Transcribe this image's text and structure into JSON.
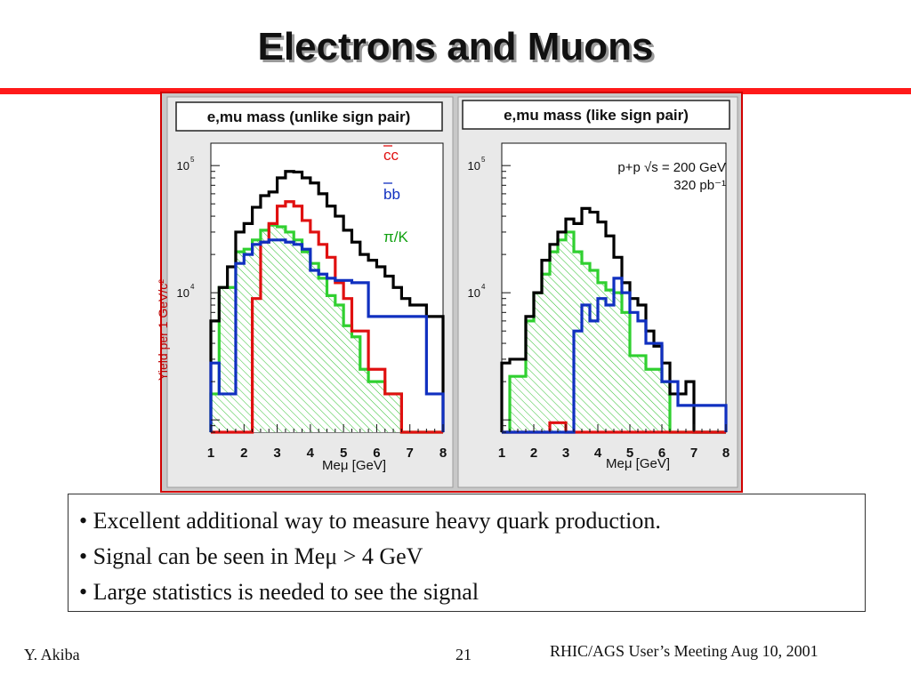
{
  "slide": {
    "title": "Electrons and Muons",
    "bullets": [
      "• Excellent additional way to measure heavy quark production.",
      "• Signal can be seen in Meμ > 4 GeV",
      "• Large statistics is needed to see the signal"
    ],
    "footer": {
      "author": "Y. Akiba",
      "page": "21",
      "meeting": "RHIC/AGS User’s Meeting  Aug 10, 2001"
    }
  },
  "colors": {
    "accent_bar": "#ff1a1a",
    "frame": "#d00000",
    "total": "#000000",
    "cc": "#e01010",
    "bb": "#1030c0",
    "piK": "#30d030"
  },
  "chart_data": [
    {
      "type": "histogram",
      "title": "e,mu mass (unlike sign pair)",
      "xlabel": "Meμ [GeV]",
      "ylabel": "Yield per 1 GeV/c²",
      "xlim": [
        1,
        8
      ],
      "ylim": [
        800,
        150000
      ],
      "yscale": "log",
      "x_ticks": [
        "1",
        "2",
        "3",
        "4",
        "5",
        "6",
        "7",
        "8"
      ],
      "y_ticks": [
        {
          "base": "10",
          "exp": "4",
          "value": 10000
        },
        {
          "base": "10",
          "exp": "5",
          "value": 100000
        }
      ],
      "legend": [
        {
          "label": "cc",
          "overline": true,
          "color": "#e01010"
        },
        {
          "label": "bb",
          "overline": true,
          "color": "#1030c0"
        },
        {
          "label": "π/K",
          "overline": false,
          "color": "#30d030"
        }
      ],
      "bin_edges": [
        1.0,
        1.25,
        1.5,
        1.75,
        2.0,
        2.25,
        2.5,
        2.75,
        3.0,
        3.25,
        3.5,
        3.75,
        4.0,
        4.25,
        4.5,
        4.75,
        5.0,
        5.25,
        5.5,
        5.75,
        6.0,
        6.25,
        6.5,
        6.75,
        7.0,
        7.25,
        7.5,
        7.75,
        8.0
      ],
      "series": [
        {
          "name": "total",
          "color": "#000000",
          "hatched": false,
          "values": [
            6000,
            11000,
            16000,
            30000,
            35000,
            47000,
            58000,
            62000,
            80000,
            90000,
            89000,
            80000,
            73000,
            60000,
            48000,
            40000,
            31000,
            25000,
            20000,
            18000,
            16000,
            13500,
            11000,
            9000,
            8000,
            8000,
            6500,
            6500
          ]
        },
        {
          "name": "cc",
          "color": "#e01010",
          "hatched": false,
          "values": [
            800,
            800,
            800,
            800,
            800,
            9000,
            25000,
            35000,
            48000,
            52000,
            48000,
            37000,
            30000,
            24000,
            19000,
            12000,
            9000,
            5000,
            5000,
            2500,
            2500,
            1600,
            1600,
            800,
            800,
            800,
            800,
            800
          ]
        },
        {
          "name": "bb",
          "color": "#1030c0",
          "hatched": false,
          "values": [
            2800,
            1600,
            1600,
            17000,
            20000,
            24000,
            25000,
            26000,
            26000,
            25000,
            24000,
            22000,
            15000,
            14000,
            13000,
            12500,
            12500,
            12000,
            12000,
            6500,
            6500,
            6500,
            6500,
            6500,
            6500,
            6500,
            1600,
            1600
          ]
        },
        {
          "name": "π/K",
          "color": "#30d030",
          "hatched": true,
          "values": [
            1600,
            11000,
            11000,
            21000,
            22000,
            26000,
            31000,
            34000,
            33000,
            30000,
            26000,
            21000,
            17000,
            13000,
            9500,
            8000,
            5500,
            4500,
            2500,
            2000,
            2000,
            1600,
            1600,
            800,
            800,
            800,
            800,
            800
          ]
        }
      ]
    },
    {
      "type": "histogram",
      "title": "e,mu mass (like sign pair)",
      "xlabel": "Meμ [GeV]",
      "ylabel": "",
      "xlim": [
        1,
        8
      ],
      "ylim": [
        800,
        150000
      ],
      "yscale": "log",
      "x_ticks": [
        "1",
        "2",
        "3",
        "4",
        "5",
        "6",
        "7",
        "8"
      ],
      "y_ticks": [
        {
          "base": "10",
          "exp": "4",
          "value": 10000
        },
        {
          "base": "10",
          "exp": "5",
          "value": 100000
        }
      ],
      "annotations": [
        "p+p √s = 200 GeV",
        "320 pb⁻¹"
      ],
      "bin_edges": [
        1.0,
        1.25,
        1.5,
        1.75,
        2.0,
        2.25,
        2.5,
        2.75,
        3.0,
        3.25,
        3.5,
        3.75,
        4.0,
        4.25,
        4.5,
        4.75,
        5.0,
        5.25,
        5.5,
        5.75,
        6.0,
        6.25,
        6.5,
        6.75,
        7.0,
        7.25,
        7.5,
        7.75,
        8.0
      ],
      "series": [
        {
          "name": "total",
          "color": "#000000",
          "hatched": false,
          "values": [
            2800,
            3000,
            3000,
            6500,
            10000,
            18000,
            24000,
            30000,
            38000,
            35000,
            46000,
            43000,
            36000,
            28000,
            19000,
            12000,
            9000,
            8000,
            5000,
            3800,
            2800,
            1600,
            1600,
            2000,
            800,
            800,
            800,
            800
          ]
        },
        {
          "name": "cc",
          "color": "#e01010",
          "hatched": false,
          "values": [
            800,
            800,
            800,
            800,
            800,
            800,
            950,
            950,
            800,
            800,
            800,
            800,
            800,
            800,
            800,
            800,
            800,
            800,
            800,
            800,
            800,
            800,
            800,
            800,
            800,
            800,
            800,
            800
          ]
        },
        {
          "name": "bb",
          "color": "#1030c0",
          "hatched": false,
          "values": [
            800,
            800,
            800,
            800,
            800,
            800,
            800,
            800,
            800,
            5000,
            8000,
            6000,
            9000,
            8000,
            13000,
            10000,
            7000,
            6000,
            4000,
            4000,
            2000,
            2000,
            1300,
            1300,
            1300,
            1300,
            1300,
            1300
          ]
        },
        {
          "name": "π/K",
          "color": "#30d030",
          "hatched": true,
          "values": [
            800,
            2200,
            2200,
            6000,
            10000,
            14000,
            21000,
            26000,
            30000,
            21000,
            17000,
            15000,
            12000,
            10500,
            10000,
            7000,
            3200,
            3200,
            2500,
            2500,
            2000,
            800,
            800,
            800,
            800,
            800,
            800,
            800
          ]
        }
      ]
    }
  ]
}
